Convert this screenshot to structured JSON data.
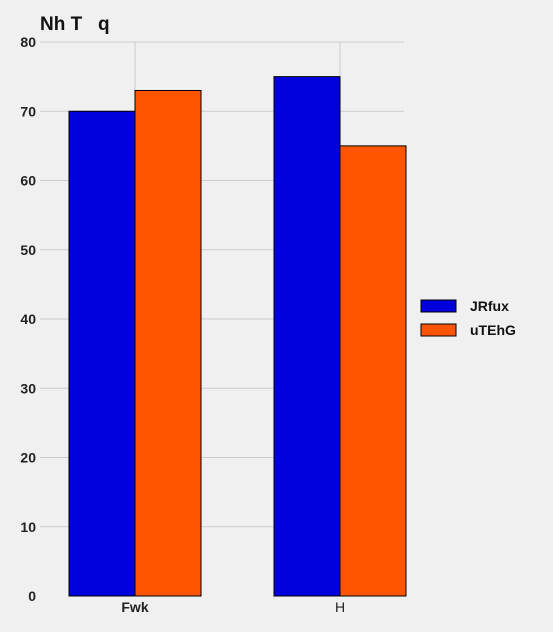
{
  "chart_data": {
    "type": "bar",
    "title": "Nh T   q",
    "categories": [
      "Fwk",
      "H"
    ],
    "category_bold": [
      true,
      false
    ],
    "series": [
      {
        "name": "JRfux",
        "values": [
          70,
          75
        ],
        "color": "#0000dd"
      },
      {
        "name": "uTEhG",
        "values": [
          73,
          65
        ],
        "color": "#ff5500"
      }
    ],
    "ylim": [
      0,
      80
    ],
    "yticks": [
      0,
      10,
      20,
      30,
      40,
      50,
      60,
      70,
      80
    ],
    "grid": "horizontal and vertical",
    "legend_position": "right",
    "xlabel": "",
    "ylabel": ""
  }
}
